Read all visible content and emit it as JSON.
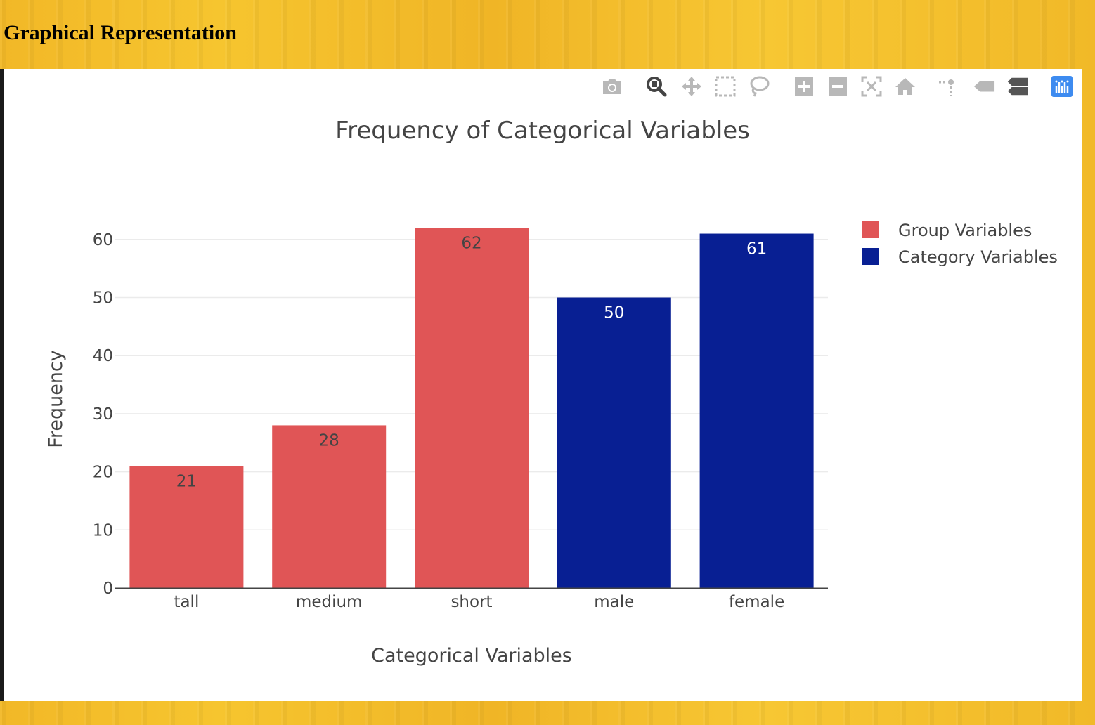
{
  "page": {
    "heading": "Graphical Representation"
  },
  "modebar": {
    "buttons": [
      {
        "icon": "camera-icon"
      },
      {
        "icon": "zoom-icon"
      },
      {
        "icon": "pan-icon"
      },
      {
        "icon": "box-select-icon"
      },
      {
        "icon": "lasso-select-icon"
      },
      {
        "icon": "zoom-in-icon"
      },
      {
        "icon": "zoom-out-icon"
      },
      {
        "icon": "autoscale-icon"
      },
      {
        "icon": "reset-axes-icon"
      },
      {
        "icon": "toggle-spike-lines-icon"
      },
      {
        "icon": "hover-closest-icon"
      },
      {
        "icon": "hover-compare-icon"
      },
      {
        "icon": "plotly-logo-icon"
      }
    ]
  },
  "chart_data": {
    "type": "bar",
    "title": "Frequency of Categorical Variables",
    "xlabel": "Categorical Variables",
    "ylabel": "Frequency",
    "ylim": [
      0,
      65
    ],
    "yticks": [
      0,
      10,
      20,
      30,
      40,
      50,
      60
    ],
    "grid": true,
    "legend_position": "top-right",
    "categories": [
      "tall",
      "medium",
      "short",
      "male",
      "female"
    ],
    "series": [
      {
        "name": "Group Variables",
        "color": "#e05556",
        "label_color": "#444444",
        "x": [
          "tall",
          "medium",
          "short"
        ],
        "values": [
          21,
          28,
          62
        ]
      },
      {
        "name": "Category Variables",
        "color": "#081f93",
        "label_color": "#ffffff",
        "x": [
          "male",
          "female"
        ],
        "values": [
          50,
          61
        ]
      }
    ]
  }
}
